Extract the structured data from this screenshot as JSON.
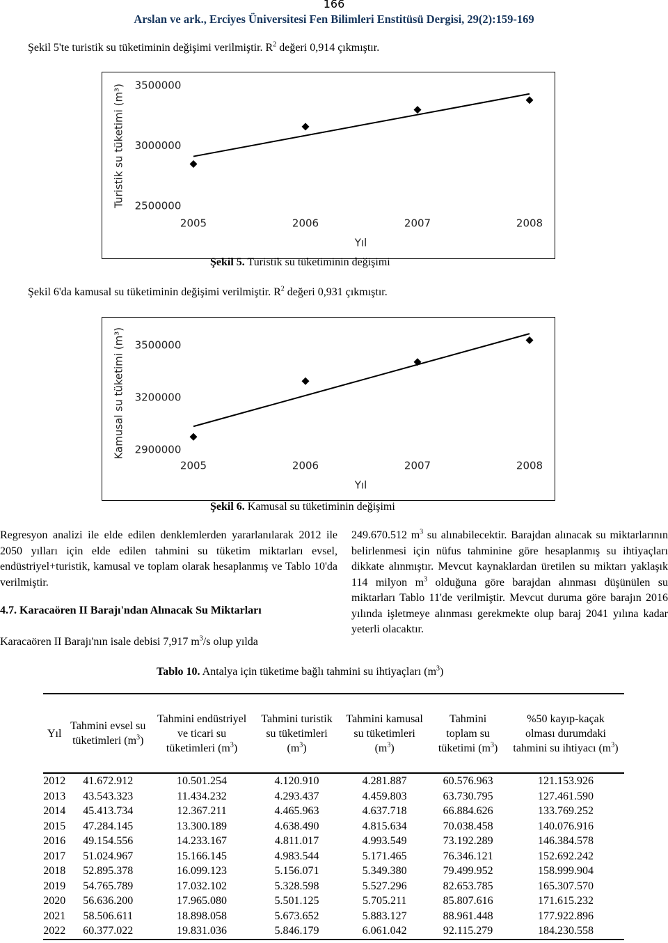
{
  "header": {
    "page": "166",
    "citation": "Arslan ve ark., Erciyes Üniversitesi Fen Bilimleri Enstitüsü Dergisi, 29(2):159-169"
  },
  "intro1": [
    {
      "t": "Şekil 5'te turistik su tüketiminin değişimi verilmiştir. R"
    },
    {
      "sup": "2"
    },
    {
      "t": " değeri 0,914 çıkmıştır."
    }
  ],
  "caption1": [
    {
      "b": "Şekil 5."
    },
    {
      "t": " Turistik su tüketiminin değişimi"
    }
  ],
  "intro2": [
    {
      "t": "Şekil 6'da kamusal su tüketiminin değişimi verilmiştir. R"
    },
    {
      "sup": "2"
    },
    {
      "t": " değeri 0,931 çıkmıştır."
    }
  ],
  "caption2": [
    {
      "b": "Şekil 6."
    },
    {
      "t": " Kamusal su tüketiminin değişimi"
    }
  ],
  "chart_data": [
    {
      "type": "scatter",
      "y_label": "Turistik su tüketimi (m³)",
      "x_label": "Yıl",
      "trendline": "linear",
      "color": "#000000",
      "x": [
        2005,
        2006,
        2007,
        2008
      ],
      "values": [
        2850000,
        3160000,
        3300000,
        3380000
      ],
      "xlim": [
        2005,
        2008
      ],
      "xticks": [
        2005,
        2006,
        2007,
        2008
      ],
      "ylim": [
        2500000,
        3500000
      ],
      "yticks": [
        2500000,
        3000000,
        3500000
      ]
    },
    {
      "type": "scatter",
      "y_label": "Kamusal su tüketimi (m³)",
      "x_label": "Yıl",
      "trendline": "linear",
      "color": "#000000",
      "x": [
        2005,
        2006,
        2007,
        2008
      ],
      "values": [
        2975000,
        3295000,
        3405000,
        3530000
      ],
      "xlim": [
        2005,
        2008
      ],
      "xticks": [
        2005,
        2006,
        2007,
        2008
      ],
      "ylim": [
        2900000,
        3550000
      ],
      "yticks": [
        2900000,
        3200000,
        3500000
      ]
    }
  ],
  "left_para1": [
    {
      "t": "Regresyon analizi ile elde edilen denklemlerden yararlanılarak 2012 ile 2050 yılları için elde edilen tahmini su tüketim miktarları evsel, endüstriyel+turistik, kamusal ve toplam olarak hesaplanmış ve Tablo 10'da verilmiştir."
    }
  ],
  "section_heading": "4.7. Karacaören II Barajı'ndan Alınacak Su Miktarları",
  "left_para2": [
    {
      "t": "Karacaören II Barajı'nın isale debisi 7,917 m"
    },
    {
      "sup": "3"
    },
    {
      "t": "/s olup yılda"
    }
  ],
  "right_para": [
    {
      "t": "249.670.512 m"
    },
    {
      "sup": "3"
    },
    {
      "t": " su alınabilecektir. Barajdan alınacak su miktarlarının belirlenmesi için nüfus tahminine göre hesaplanmış su ihtiyaçları dikkate alınmıştır. Mevcut kaynaklardan üretilen su miktarı yaklaşık 114 milyon m"
    },
    {
      "sup": "3"
    },
    {
      "t": " olduğuna göre barajdan alınması düşünülen su miktarları Tablo 11'de verilmiştir. Mevcut duruma göre barajın 2016 yılında işletmeye alınması gerekmekte olup baraj 2041 yılına kadar yeterli olacaktır."
    }
  ],
  "table_caption": [
    {
      "b": "Tablo 10."
    },
    {
      "t": " Antalya için tüketime bağlı tahmini su ihtiyaçları (m"
    },
    {
      "sup": "3"
    },
    {
      "t": ")"
    }
  ],
  "table": {
    "headers": [
      [
        {
          "t": "Yıl"
        }
      ],
      [
        {
          "t": "Tahmini evsel su tüketimleri (m"
        },
        {
          "sup": "3"
        },
        {
          "t": ")"
        }
      ],
      [
        {
          "t": "Tahmini endüstriyel ve ticari su tüketimleri (m"
        },
        {
          "sup": "3"
        },
        {
          "t": ")"
        }
      ],
      [
        {
          "t": "Tahmini turistik su tüketimleri (m"
        },
        {
          "sup": "3"
        },
        {
          "t": ")"
        }
      ],
      [
        {
          "t": "Tahmini kamusal su tüketimleri (m"
        },
        {
          "sup": "3"
        },
        {
          "t": ")"
        }
      ],
      [
        {
          "t": "Tahmini toplam su tüketimi (m"
        },
        {
          "sup": "3"
        },
        {
          "t": ")"
        }
      ],
      [
        {
          "t": "%50 kayıp-kaçak olması durumdaki tahmini su ihtiyacı (m"
        },
        {
          "sup": "3"
        },
        {
          "t": ")"
        }
      ]
    ],
    "rows": [
      [
        "2012",
        "41.672.912",
        "10.501.254",
        "4.120.910",
        "4.281.887",
        "60.576.963",
        "121.153.926"
      ],
      [
        "2013",
        "43.543.323",
        "11.434.232",
        "4.293.437",
        "4.459.803",
        "63.730.795",
        "127.461.590"
      ],
      [
        "2014",
        "45.413.734",
        "12.367.211",
        "4.465.963",
        "4.637.718",
        "66.884.626",
        "133.769.252"
      ],
      [
        "2015",
        "47.284.145",
        "13.300.189",
        "4.638.490",
        "4.815.634",
        "70.038.458",
        "140.076.916"
      ],
      [
        "2016",
        "49.154.556",
        "14.233.167",
        "4.811.017",
        "4.993.549",
        "73.192.289",
        "146.384.578"
      ],
      [
        "2017",
        "51.024.967",
        "15.166.145",
        "4.983.544",
        "5.171.465",
        "76.346.121",
        "152.692.242"
      ],
      [
        "2018",
        "52.895.378",
        "16.099.123",
        "5.156.071",
        "5.349.380",
        "79.499.952",
        "158.999.904"
      ],
      [
        "2019",
        "54.765.789",
        "17.032.102",
        "5.328.598",
        "5.527.296",
        "82.653.785",
        "165.307.570"
      ],
      [
        "2020",
        "56.636.200",
        "17.965.080",
        "5.501.125",
        "5.705.211",
        "85.807.616",
        "171.615.232"
      ],
      [
        "2021",
        "58.506.611",
        "18.898.058",
        "5.673.652",
        "5.883.127",
        "88.961.448",
        "177.922.896"
      ],
      [
        "2022",
        "60.377.022",
        "19.831.036",
        "5.846.179",
        "6.061.042",
        "92.115.279",
        "184.230.558"
      ]
    ]
  }
}
